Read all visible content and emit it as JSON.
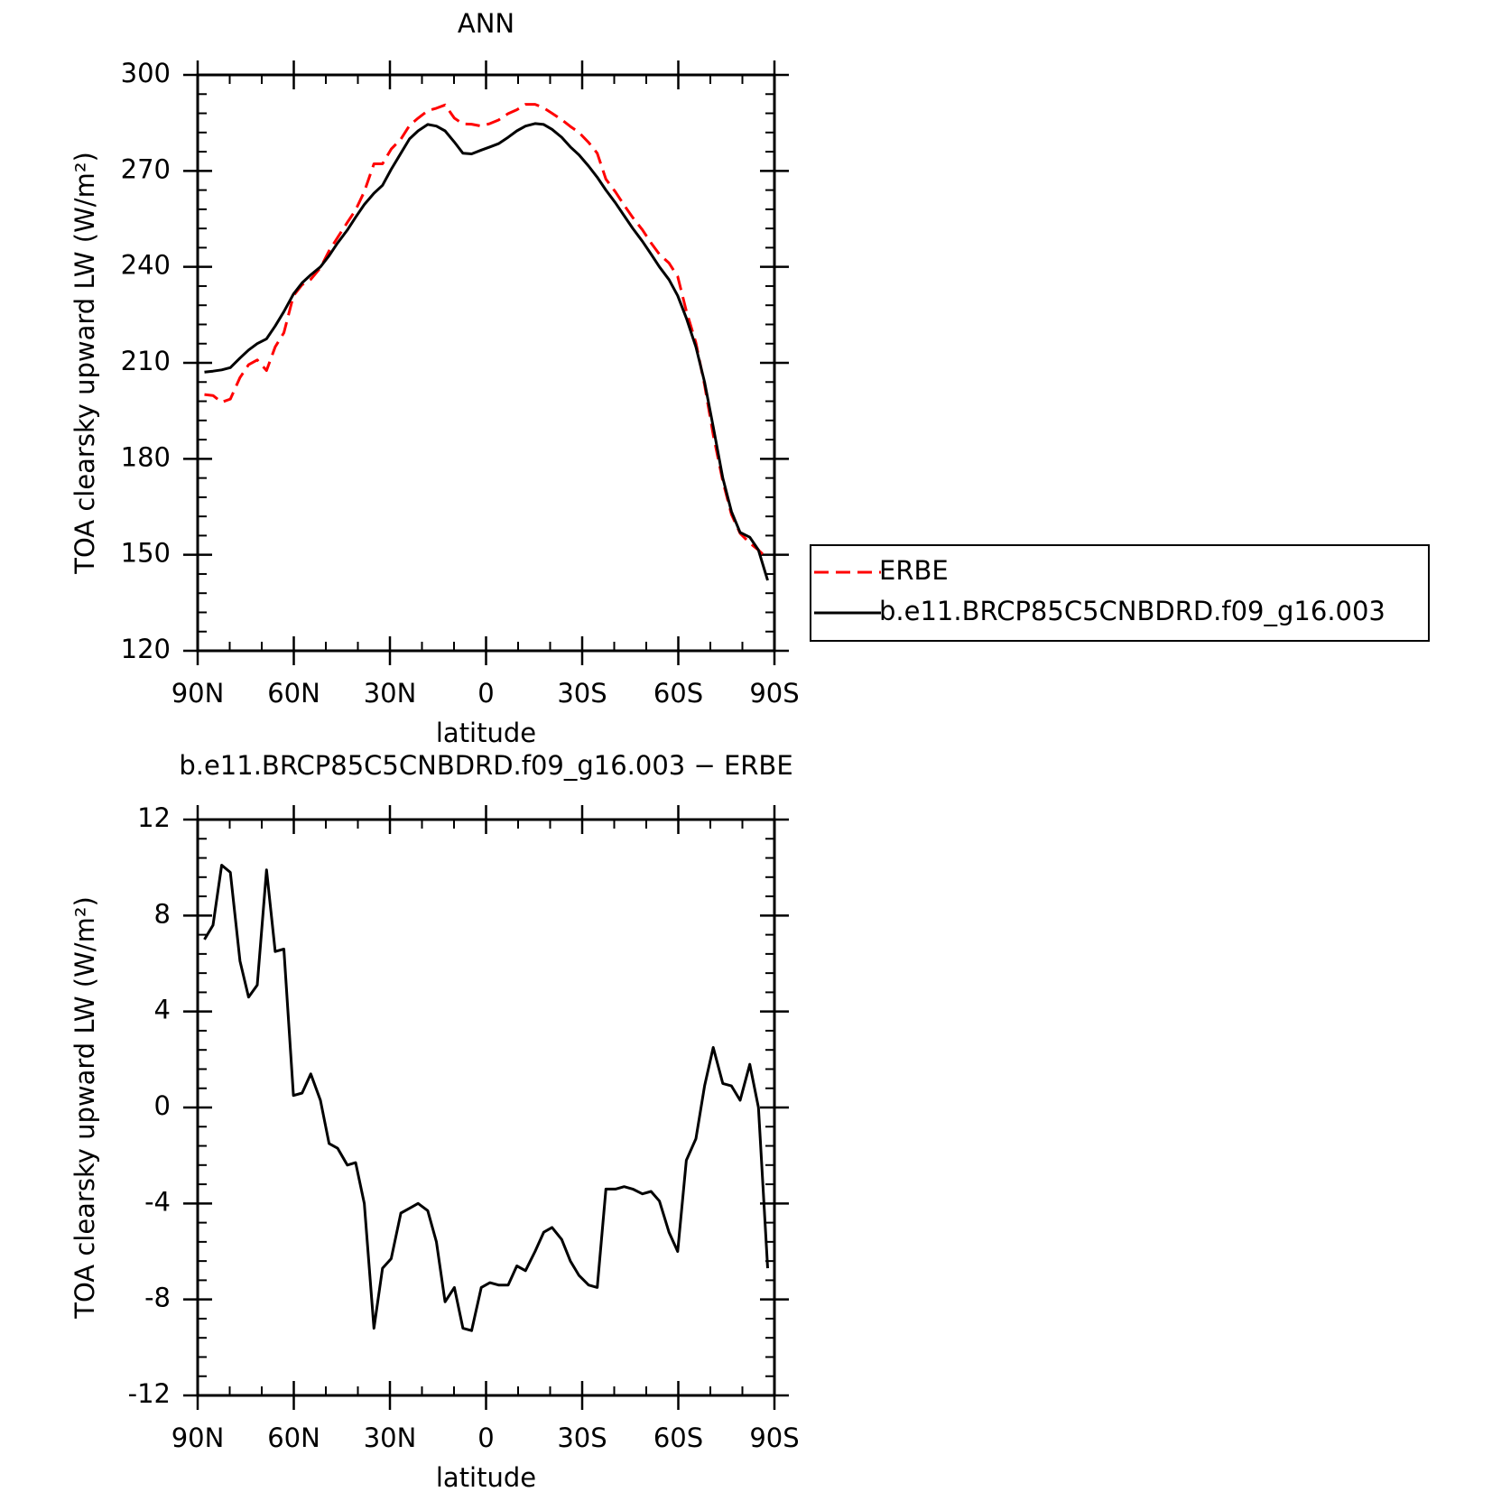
{
  "chart_data": [
    {
      "type": "line",
      "title": "ANN",
      "x_label": "latitude",
      "y_label": "TOA clearsky upward LW (W/m²)",
      "x": [
        87.9,
        85.2,
        82.5,
        79.8,
        76.8,
        74.1,
        71.4,
        68.5,
        65.8,
        63.1,
        60.1,
        57.4,
        54.7,
        51.7,
        49.0,
        46.3,
        43.3,
        40.7,
        38.0,
        35.0,
        32.3,
        29.6,
        26.6,
        23.9,
        21.2,
        18.2,
        15.5,
        12.8,
        9.9,
        7.2,
        4.5,
        1.5,
        -1.2,
        -3.9,
        -6.9,
        -9.6,
        -12.3,
        -15.3,
        -18.0,
        -20.6,
        -23.6,
        -26.3,
        -29.0,
        -32.0,
        -34.7,
        -37.4,
        -40.4,
        -43.1,
        -45.8,
        -48.8,
        -51.5,
        -54.1,
        -57.1,
        -59.8,
        -62.5,
        -65.5,
        -68.2,
        -70.9,
        -73.9,
        -76.6,
        -79.3,
        -82.3,
        -85.0,
        -87.9
      ],
      "series": [
        {
          "name": "ERBE",
          "color": "#ff0000",
          "line_style": "dashed",
          "values": [
            200.1,
            199.8,
            197.7,
            198.7,
            205.4,
            209.4,
            210.9,
            207.6,
            215.0,
            219.4,
            231.0,
            234.4,
            236.1,
            239.7,
            245.0,
            249.2,
            253.9,
            257.8,
            263.5,
            272.2,
            272.2,
            276.8,
            279.9,
            284.2,
            286.5,
            288.8,
            289.6,
            290.6,
            286.5,
            284.7,
            284.6,
            284.0,
            284.8,
            285.9,
            287.9,
            289.1,
            290.8,
            290.8,
            289.7,
            288.0,
            286.0,
            283.9,
            282.0,
            278.9,
            275.5,
            267.4,
            263.4,
            259.3,
            255.4,
            251.6,
            247.5,
            243.9,
            241.2,
            237.0,
            226.2,
            216.3,
            203.1,
            187.5,
            173.0,
            162.6,
            156.7,
            153.7,
            151.5,
            148.7
          ]
        },
        {
          "name": "b.e11.BRCP85C5CNBDRD.f09_g16.003",
          "color": "#000000",
          "line_style": "solid",
          "values": [
            207.1,
            207.4,
            207.8,
            208.5,
            211.5,
            214,
            216,
            217.5,
            221.5,
            226,
            231.5,
            235,
            237.5,
            240,
            243.5,
            247.5,
            251.5,
            255.5,
            259.5,
            263,
            265.5,
            270.5,
            275.5,
            280,
            282.5,
            284.5,
            284,
            282.5,
            279,
            275.5,
            275.3,
            276.5,
            277.5,
            278.5,
            280.5,
            282.5,
            284,
            284.8,
            284.5,
            283,
            280.5,
            277.5,
            275,
            271.5,
            268,
            264,
            260,
            256,
            252,
            248,
            244,
            240,
            236,
            231,
            224,
            215,
            204,
            190,
            174,
            163.5,
            157,
            155.5,
            151.5,
            142
          ]
        }
      ],
      "xlim": [
        90,
        -90
      ],
      "xticks": [
        {
          "value": 90,
          "label": "90N"
        },
        {
          "value": 60,
          "label": "60N"
        },
        {
          "value": 30,
          "label": "30N"
        },
        0,
        {
          "value": -30,
          "label": "30S"
        },
        {
          "value": -60,
          "label": "60S"
        },
        {
          "value": -90,
          "label": "90S"
        }
      ],
      "ylim": [
        120,
        300
      ],
      "yticks": [
        120,
        150,
        180,
        210,
        240,
        270,
        300
      ],
      "legend": "right"
    },
    {
      "type": "line",
      "title": "b.e11.BRCP85C5CNBDRD.f09_g16.003 − ERBE",
      "x_label": "latitude",
      "y_label": "TOA clearsky upward LW (W/m²)",
      "x": [
        87.9,
        85.2,
        82.5,
        79.8,
        76.8,
        74.1,
        71.4,
        68.5,
        65.8,
        63.1,
        60.1,
        57.4,
        54.7,
        51.7,
        49.0,
        46.3,
        43.3,
        40.7,
        38.0,
        35.0,
        32.3,
        29.6,
        26.6,
        23.9,
        21.2,
        18.2,
        15.5,
        12.8,
        9.9,
        7.2,
        4.5,
        1.5,
        -1.2,
        -3.9,
        -6.9,
        -9.6,
        -12.3,
        -15.3,
        -18.0,
        -20.6,
        -23.6,
        -26.3,
        -29.0,
        -32.0,
        -34.7,
        -37.4,
        -40.4,
        -43.1,
        -45.8,
        -48.8,
        -51.5,
        -54.1,
        -57.1,
        -59.8,
        -62.5,
        -65.5,
        -68.2,
        -70.9,
        -73.9,
        -76.6,
        -79.3,
        -82.3,
        -85.0,
        -87.9
      ],
      "series": [
        {
          "color": "#000000",
          "line_style": "solid",
          "values": [
            7.0,
            7.6,
            10.1,
            9.8,
            6.1,
            4.6,
            5.1,
            9.9,
            6.5,
            6.6,
            0.5,
            0.6,
            1.4,
            0.3,
            -1.5,
            -1.7,
            -2.4,
            -2.3,
            -4.0,
            -9.2,
            -6.7,
            -6.3,
            -4.4,
            -4.2,
            -4.0,
            -4.3,
            -5.6,
            -8.1,
            -7.5,
            -9.2,
            -9.3,
            -7.5,
            -7.3,
            -7.4,
            -7.4,
            -6.6,
            -6.8,
            -6.0,
            -5.2,
            -5.0,
            -5.5,
            -6.4,
            -7.0,
            -7.4,
            -7.5,
            -3.4,
            -3.4,
            -3.3,
            -3.4,
            -3.6,
            -3.5,
            -3.9,
            -5.2,
            -6.0,
            -2.2,
            -1.3,
            0.9,
            2.5,
            1.0,
            0.9,
            0.3,
            1.8,
            0.0,
            -6.7
          ]
        }
      ],
      "xlim": [
        90,
        -90
      ],
      "xticks": [
        {
          "value": 90,
          "label": "90N"
        },
        {
          "value": 60,
          "label": "60N"
        },
        {
          "value": 30,
          "label": "30N"
        },
        0,
        {
          "value": -30,
          "label": "30S"
        },
        {
          "value": -60,
          "label": "60S"
        },
        {
          "value": -90,
          "label": "90S"
        }
      ],
      "ylim": [
        -12,
        12
      ],
      "yticks": [
        -12,
        -8,
        -4,
        0,
        4,
        8,
        12
      ]
    }
  ]
}
